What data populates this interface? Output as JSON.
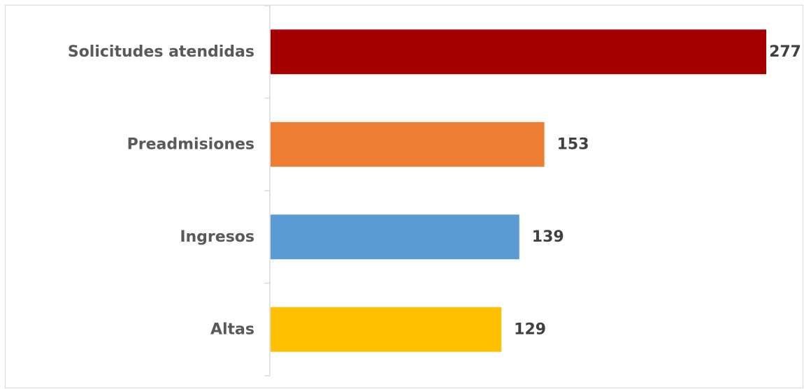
{
  "chart_data": {
    "type": "bar",
    "orientation": "horizontal",
    "categories": [
      "Solicitudes atendidas",
      "Preadmisiones",
      "Ingresos",
      "Altas"
    ],
    "values": [
      277,
      153,
      139,
      129
    ],
    "colors": [
      "#a50000",
      "#ed7d31",
      "#5b9bd5",
      "#ffc000"
    ],
    "data_labels": [
      "277",
      "153",
      "139",
      "129"
    ],
    "title": "",
    "xlabel": "",
    "ylabel": "",
    "xlim": [
      0,
      277
    ],
    "grid": false,
    "legend": "none"
  }
}
